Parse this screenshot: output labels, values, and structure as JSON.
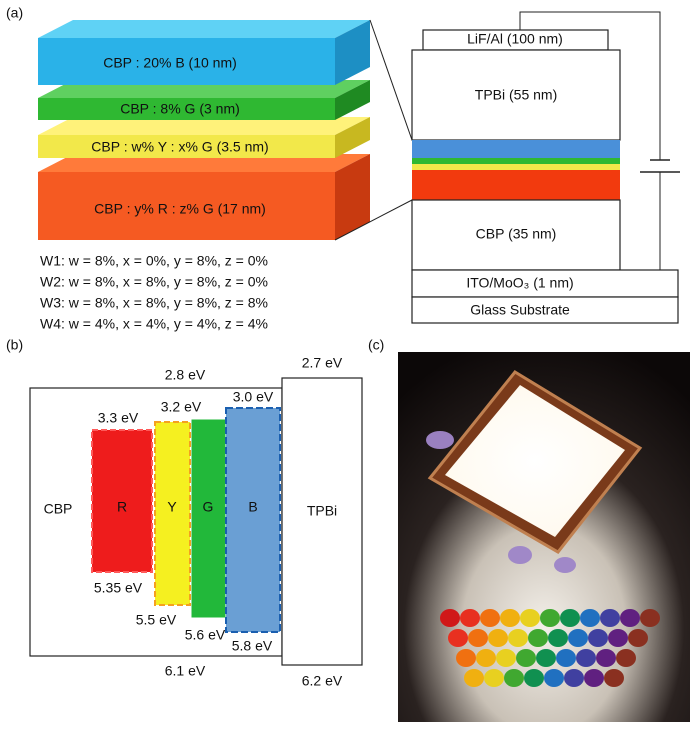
{
  "panels": {
    "a": "(a)",
    "b": "(b)",
    "c": "(c)"
  },
  "stack_layers": [
    "CBP : 20% B (10 nm)",
    "CBP : 8% G (3 nm)",
    "CBP : w% Y : x% G (3.5 nm)",
    "CBP : y% R : z% G (17 nm)"
  ],
  "device_layers": [
    "LiF/Al (100 nm)",
    "TPBi (55 nm)",
    "CBP (35 nm)",
    "ITO/MoO₃ (1 nm)",
    "Glass Substrate"
  ],
  "variants": [
    "W1: w = 8%, x = 0%, y = 8%, z = 0%",
    "W2: w = 8%, x = 8%, y = 8%, z = 0%",
    "W3: w = 8%, x = 8%, y = 8%, z = 8%",
    "W4: w = 4%, x = 4%, y = 4%, z = 4%"
  ],
  "energy": {
    "host": {
      "name": "CBP",
      "lumo": "2.8 eV",
      "homo": "6.1 eV"
    },
    "dopants": [
      {
        "name": "R",
        "lumo": "3.3 eV",
        "homo": "5.35 eV"
      },
      {
        "name": "Y",
        "lumo": "3.2 eV",
        "homo": "5.5 eV"
      },
      {
        "name": "G",
        "homo": "5.6 eV"
      },
      {
        "name": "B",
        "lumo": "3.0 eV",
        "homo": "5.8 eV"
      }
    ],
    "etl": {
      "name": "TPBi",
      "lumo": "2.7 eV",
      "homo": "6.2 eV"
    }
  }
}
